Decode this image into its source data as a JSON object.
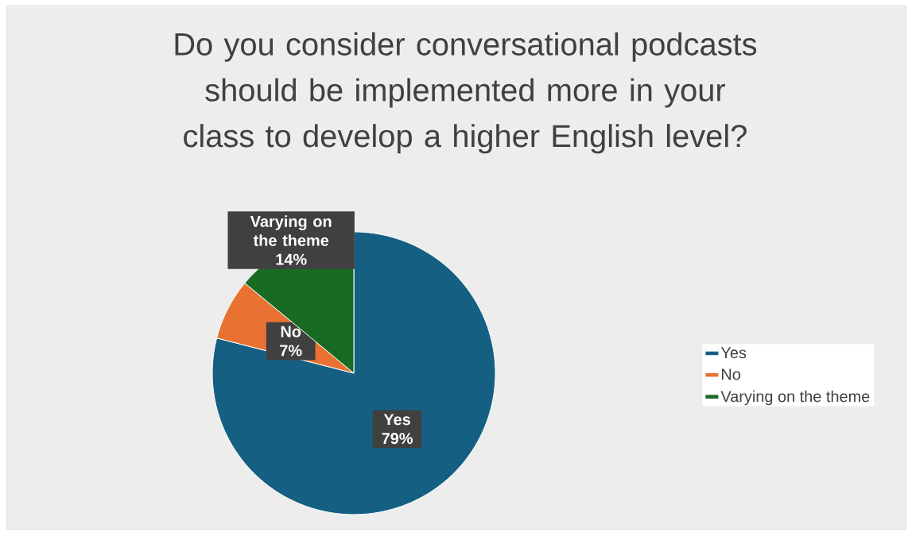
{
  "chart_data": {
    "type": "pie",
    "title": "Do you consider conversational podcasts should be implemented more in your class to develop a higher English level?",
    "categories": [
      "Yes",
      "No",
      "Varying on the theme"
    ],
    "values": [
      79,
      7,
      14
    ],
    "colors": [
      "#156082",
      "#e97132",
      "#196b24"
    ],
    "value_labels": [
      "79%",
      "7%",
      "14%"
    ],
    "legend": "right"
  }
}
